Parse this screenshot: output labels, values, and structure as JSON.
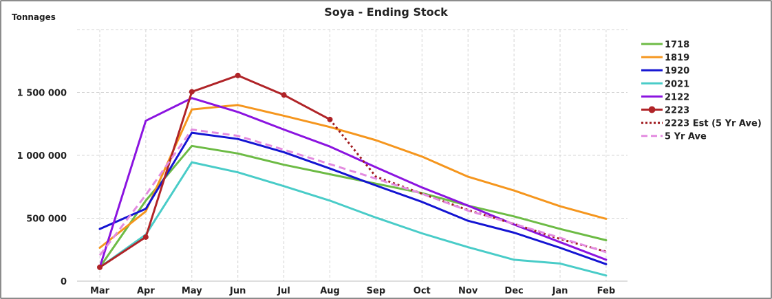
{
  "chart_data": {
    "type": "line",
    "title": "Soya - Ending Stock",
    "ylabel": "Tonnages",
    "xlabel": "",
    "ylim": [
      0,
      2000000
    ],
    "yticks": [
      0,
      500000,
      1000000,
      1500000
    ],
    "ytick_labels": [
      "0",
      "500 000",
      "1 000 000",
      "1 500 000"
    ],
    "grid": true,
    "legend_position": "right",
    "categories": [
      "Mar",
      "Apr",
      "May",
      "Jun",
      "Jul",
      "Aug",
      "Sep",
      "Oct",
      "Nov",
      "Dec",
      "Jan",
      "Feb"
    ],
    "series": [
      {
        "name": "1718",
        "color": "#6dbb45",
        "dash": "solid",
        "marker": false,
        "values": [
          110000,
          640000,
          1075000,
          1015000,
          925000,
          850000,
          775000,
          700000,
          600000,
          515000,
          415000,
          325000
        ]
      },
      {
        "name": "1819",
        "color": "#f5961e",
        "dash": "solid",
        "marker": false,
        "values": [
          265000,
          555000,
          1365000,
          1400000,
          1315000,
          1225000,
          1120000,
          990000,
          830000,
          720000,
          595000,
          495000
        ]
      },
      {
        "name": "1920",
        "color": "#1414d2",
        "dash": "solid",
        "marker": false,
        "values": [
          415000,
          575000,
          1180000,
          1130000,
          1025000,
          895000,
          760000,
          630000,
          480000,
          385000,
          265000,
          135000
        ]
      },
      {
        "name": "2021",
        "color": "#49ccc8",
        "dash": "solid",
        "marker": false,
        "values": [
          110000,
          370000,
          945000,
          865000,
          755000,
          640000,
          505000,
          380000,
          270000,
          170000,
          140000,
          45000
        ]
      },
      {
        "name": "2122",
        "color": "#8b14e0",
        "dash": "solid",
        "marker": false,
        "values": [
          110000,
          1275000,
          1455000,
          1345000,
          1205000,
          1070000,
          905000,
          745000,
          600000,
          450000,
          310000,
          170000
        ]
      },
      {
        "name": "2223",
        "color": "#b02428",
        "dash": "solid",
        "marker": true,
        "values": [
          110000,
          350000,
          1505000,
          1635000,
          1480000,
          1285000,
          null,
          null,
          null,
          null,
          null,
          null
        ]
      },
      {
        "name": "2223 Est (5 Yr Ave)",
        "color": "#a01a1e",
        "dash": "dotted",
        "marker": false,
        "values": [
          null,
          null,
          null,
          null,
          null,
          1285000,
          830000,
          695000,
          565000,
          455000,
          335000,
          235000
        ]
      },
      {
        "name": "5 Yr Ave",
        "color": "#e38be0",
        "dash": "dashed",
        "marker": false,
        "values": [
          205000,
          685000,
          1205000,
          1155000,
          1045000,
          930000,
          815000,
          695000,
          560000,
          455000,
          345000,
          230000
        ]
      }
    ]
  }
}
